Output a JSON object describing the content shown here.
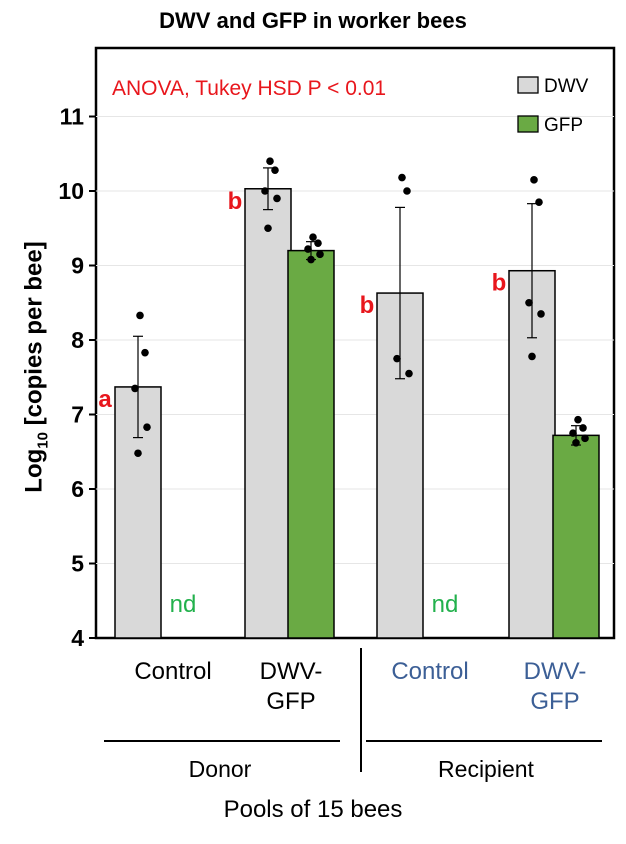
{
  "title": "DWV and GFP in worker bees",
  "chart_data": {
    "type": "bar",
    "title": "DWV and GFP in worker bees",
    "ylabel_main": "Log",
    "ylabel_sub": "10",
    "ylabel_rest": " [copies per bee]",
    "xlabel": "Pools of 15 bees",
    "ylim": [
      4,
      11.8
    ],
    "yticks": [
      "4",
      "5",
      "6",
      "7",
      "8",
      "9",
      "10",
      "11"
    ],
    "grid": true,
    "legend_position": "top-right",
    "annotation": "ANOVA, Tukey HSD P < 0.01",
    "sections": [
      "Donor",
      "Recipient"
    ],
    "categories": [
      "Control",
      "DWV-\nGFP",
      "Control",
      "DWV-\nGFP"
    ],
    "series": [
      {
        "name": "DWV",
        "color": "#d9d9d9",
        "values": [
          7.37,
          10.03,
          8.63,
          8.93
        ],
        "errors": [
          0.68,
          0.28,
          1.15,
          0.9
        ],
        "letters": [
          "a",
          "b",
          "b",
          "b"
        ],
        "points": [
          [
            8.33,
            7.83,
            7.35,
            6.83,
            6.48
          ],
          [
            10.4,
            10.28,
            10.0,
            9.9,
            9.5
          ],
          [
            10.18,
            10.0,
            7.75,
            7.55
          ],
          [
            10.15,
            9.85,
            8.5,
            8.35,
            7.78
          ]
        ]
      },
      {
        "name": "GFP",
        "color": "#6aaa44",
        "values": [
          null,
          9.2,
          null,
          6.72
        ],
        "errors": [
          null,
          0.12,
          null,
          0.13
        ],
        "labels": [
          "nd",
          null,
          "nd",
          null
        ],
        "points": [
          [],
          [
            9.38,
            9.3,
            9.22,
            9.15,
            9.08
          ],
          [],
          [
            6.93,
            6.82,
            6.75,
            6.68,
            6.62
          ]
        ]
      }
    ]
  },
  "colors": {
    "letter": "#e8161c",
    "nd": "#22b14c",
    "recipient_category": "#3c5f96"
  }
}
